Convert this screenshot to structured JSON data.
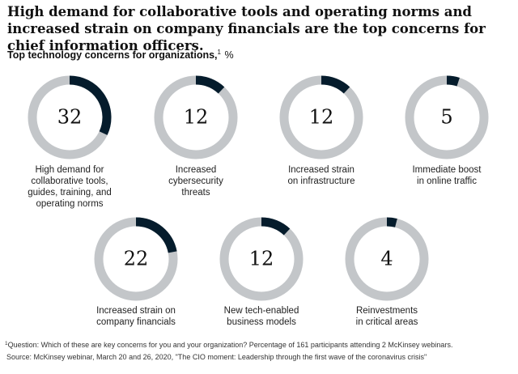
{
  "header": {
    "title": "High demand for collaborative tools and operating norms and increased strain on company financials are the top concerns for chief information officers.",
    "subtitle_bold": "Top technology concerns for organizations,",
    "subtitle_sup": "1",
    "subtitle_unit": "%"
  },
  "colors": {
    "ring_track": "#c3c6c9",
    "ring_fill": "#051c2c",
    "value_text": "#111111"
  },
  "chart_data": {
    "type": "pie",
    "unit": "%",
    "categories": [
      "High demand for collaborative tools, guides, training, and operating norms",
      "Increased cybersecurity threats",
      "Increased strain on infrastructure",
      "Immediate boost in online traffic",
      "Increased strain on company financials",
      "New tech-enabled business models",
      "Reinvestments in critical areas"
    ],
    "values": [
      32,
      12,
      12,
      5,
      22,
      12,
      4
    ],
    "label_lines": [
      [
        "High demand for",
        "collaborative tools,",
        "guides, training, and",
        "operating norms"
      ],
      [
        "Increased",
        "cybersecurity",
        "threats"
      ],
      [
        "Increased strain",
        "on infrastructure"
      ],
      [
        "Immediate boost",
        "in online traffic"
      ],
      [
        "Increased strain on",
        "company financials"
      ],
      [
        "New tech-enabled",
        "business models"
      ],
      [
        "Reinvestments",
        "in critical areas"
      ]
    ]
  },
  "footnote": {
    "sup": "1",
    "text": "Question: Which of these are key concerns for you and your organization? Percentage of 161 participants attending 2 McKinsey webinars."
  },
  "source": "Source: McKinsey webinar, March 20 and 26, 2020, \"The CIO moment: Leadership through the first wave of the coronavirus crisis\""
}
